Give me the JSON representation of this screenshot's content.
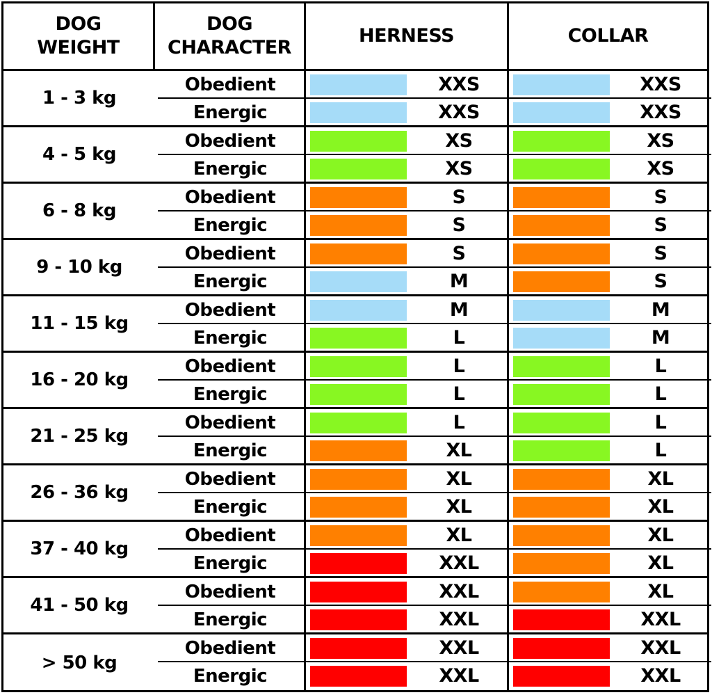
{
  "colors": {
    "XXS": "#a6dcf8",
    "XS": "#88f722",
    "S": "#ff8000",
    "M": "#a6dcf8",
    "L": "#88f722",
    "XL": "#ff8000",
    "XXL": "#ff0000"
  },
  "headers": {
    "weight": "DOG\nWEIGHT",
    "character": "DOG\nCHARACTER",
    "harness": "HERNESS",
    "collar": "COLLAR"
  },
  "groups": [
    {
      "weight": "1 - 3 kg",
      "rows": [
        {
          "character": "Obedient",
          "harness": "XXS",
          "collar": "XXS"
        },
        {
          "character": "Energic",
          "harness": "XXS",
          "collar": "XXS"
        }
      ]
    },
    {
      "weight": "4 - 5 kg",
      "rows": [
        {
          "character": "Obedient",
          "harness": "XS",
          "collar": "XS"
        },
        {
          "character": "Energic",
          "harness": "XS",
          "collar": "XS"
        }
      ]
    },
    {
      "weight": "6 - 8 kg",
      "rows": [
        {
          "character": "Obedient",
          "harness": "S",
          "collar": "S"
        },
        {
          "character": "Energic",
          "harness": "S",
          "collar": "S"
        }
      ]
    },
    {
      "weight": "9 - 10 kg",
      "rows": [
        {
          "character": "Obedient",
          "harness": "S",
          "collar": "S"
        },
        {
          "character": "Energic",
          "harness": "M",
          "collar": "S"
        }
      ]
    },
    {
      "weight": "11 - 15 kg",
      "rows": [
        {
          "character": "Obedient",
          "harness": "M",
          "collar": "M"
        },
        {
          "character": "Energic",
          "harness": "L",
          "collar": "M"
        }
      ]
    },
    {
      "weight": "16 - 20 kg",
      "rows": [
        {
          "character": "Obedient",
          "harness": "L",
          "collar": "L"
        },
        {
          "character": "Energic",
          "harness": "L",
          "collar": "L"
        }
      ]
    },
    {
      "weight": "21 - 25 kg",
      "rows": [
        {
          "character": "Obedient",
          "harness": "L",
          "collar": "L"
        },
        {
          "character": "Energic",
          "harness": "XL",
          "collar": "L"
        }
      ]
    },
    {
      "weight": "26 - 36 kg",
      "rows": [
        {
          "character": "Obedient",
          "harness": "XL",
          "collar": "XL"
        },
        {
          "character": "Energic",
          "harness": "XL",
          "collar": "XL"
        }
      ]
    },
    {
      "weight": "37 - 40 kg",
      "rows": [
        {
          "character": "Obedient",
          "harness": "XL",
          "collar": "XL"
        },
        {
          "character": "Energic",
          "harness": "XXL",
          "collar": "XL"
        }
      ]
    },
    {
      "weight": "41 - 50 kg",
      "rows": [
        {
          "character": "Obedient",
          "harness": "XXL",
          "collar": "XL"
        },
        {
          "character": "Energic",
          "harness": "XXL",
          "collar": "XXL"
        }
      ]
    },
    {
      "weight": "> 50 kg",
      "rows": [
        {
          "character": "Obedient",
          "harness": "XXL",
          "collar": "XXL"
        },
        {
          "character": "Energic",
          "harness": "XXL",
          "collar": "XXL"
        }
      ]
    }
  ]
}
